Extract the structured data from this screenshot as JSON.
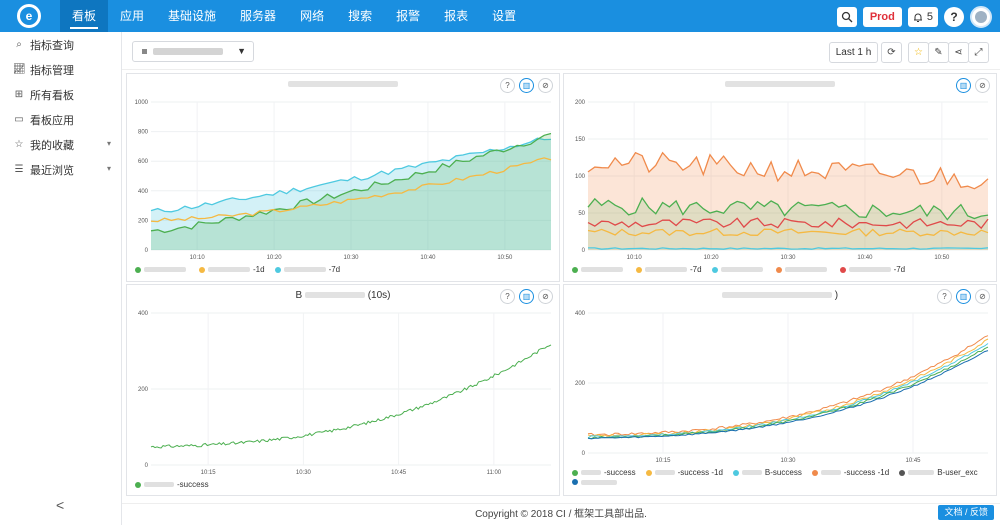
{
  "nav": {
    "logo_letter": "e",
    "items": [
      "看板",
      "应用",
      "基础设施",
      "服务器",
      "网络",
      "搜索",
      "报警",
      "报表",
      "设置"
    ],
    "env_label": "Prod",
    "notice_count": "5",
    "help_label": "?"
  },
  "sidebar": {
    "items": [
      {
        "label": "指标查询",
        "icon": "search-icon"
      },
      {
        "label": "指标管理",
        "icon": "chart-icon"
      },
      {
        "label": "所有看板",
        "icon": "grid-icon"
      },
      {
        "label": "看板应用",
        "icon": "monitor-icon"
      },
      {
        "label": "我的收藏",
        "icon": "star-icon",
        "expandable": true
      },
      {
        "label": "最近浏览",
        "icon": "list-icon",
        "expandable": true
      }
    ],
    "collapse_glyph": "<"
  },
  "toolbar": {
    "time_range": "Last 1 h"
  },
  "panels": [
    {
      "title_suffix": "",
      "legend": [
        {
          "label": "",
          "color": "#4caf50"
        },
        {
          "label": "-1d",
          "color": "#f5b942"
        },
        {
          "label": "-7d",
          "color": "#4ec9e0"
        }
      ],
      "x_ticks": [
        "10:10",
        "10:20",
        "10:30",
        "10:40",
        "10:50"
      ],
      "y_ticks": [
        "0",
        "200",
        "400",
        "600",
        "800",
        "1000"
      ]
    },
    {
      "title_suffix": "",
      "legend": [
        {
          "label": "",
          "color": "#4caf50"
        },
        {
          "label": "-7d",
          "color": "#f5b942"
        },
        {
          "label": "",
          "color": "#4ec9e0"
        },
        {
          "label": "",
          "color": "#f08a4b"
        },
        {
          "label": "-7d",
          "color": "#e04a4a"
        }
      ],
      "x_ticks": [
        "10:10",
        "10:20",
        "10:30",
        "10:40",
        "10:50"
      ],
      "y_ticks": [
        "0",
        "50",
        "100",
        "150",
        "200"
      ]
    },
    {
      "title_prefix": "B",
      "title_suffix": "(10s)",
      "legend": [
        {
          "label": "-success",
          "color": "#4caf50"
        }
      ],
      "x_ticks": [
        "10:15",
        "10:30",
        "10:45",
        "11:00"
      ],
      "y_ticks": [
        "0",
        "200",
        "400"
      ]
    },
    {
      "title_suffix": ")",
      "legend": [
        {
          "label": "-success",
          "color": "#4caf50"
        },
        {
          "label": "-success -1d",
          "color": "#f5b942"
        },
        {
          "label": "B-success",
          "color": "#4ec9e0"
        },
        {
          "label": "-success -1d",
          "color": "#f08a4b"
        },
        {
          "label": "B-user_exc",
          "color": "#555555"
        },
        {
          "label": "",
          "color": "#1a6fb0"
        }
      ],
      "x_ticks": [
        "10:15",
        "10:30",
        "10:45"
      ],
      "y_ticks": [
        "0",
        "200",
        "400"
      ]
    }
  ],
  "footer": {
    "copyright": "Copyright © 2018 CI / 框架工具部出品.",
    "feedback": "文档 / 反馈"
  }
}
